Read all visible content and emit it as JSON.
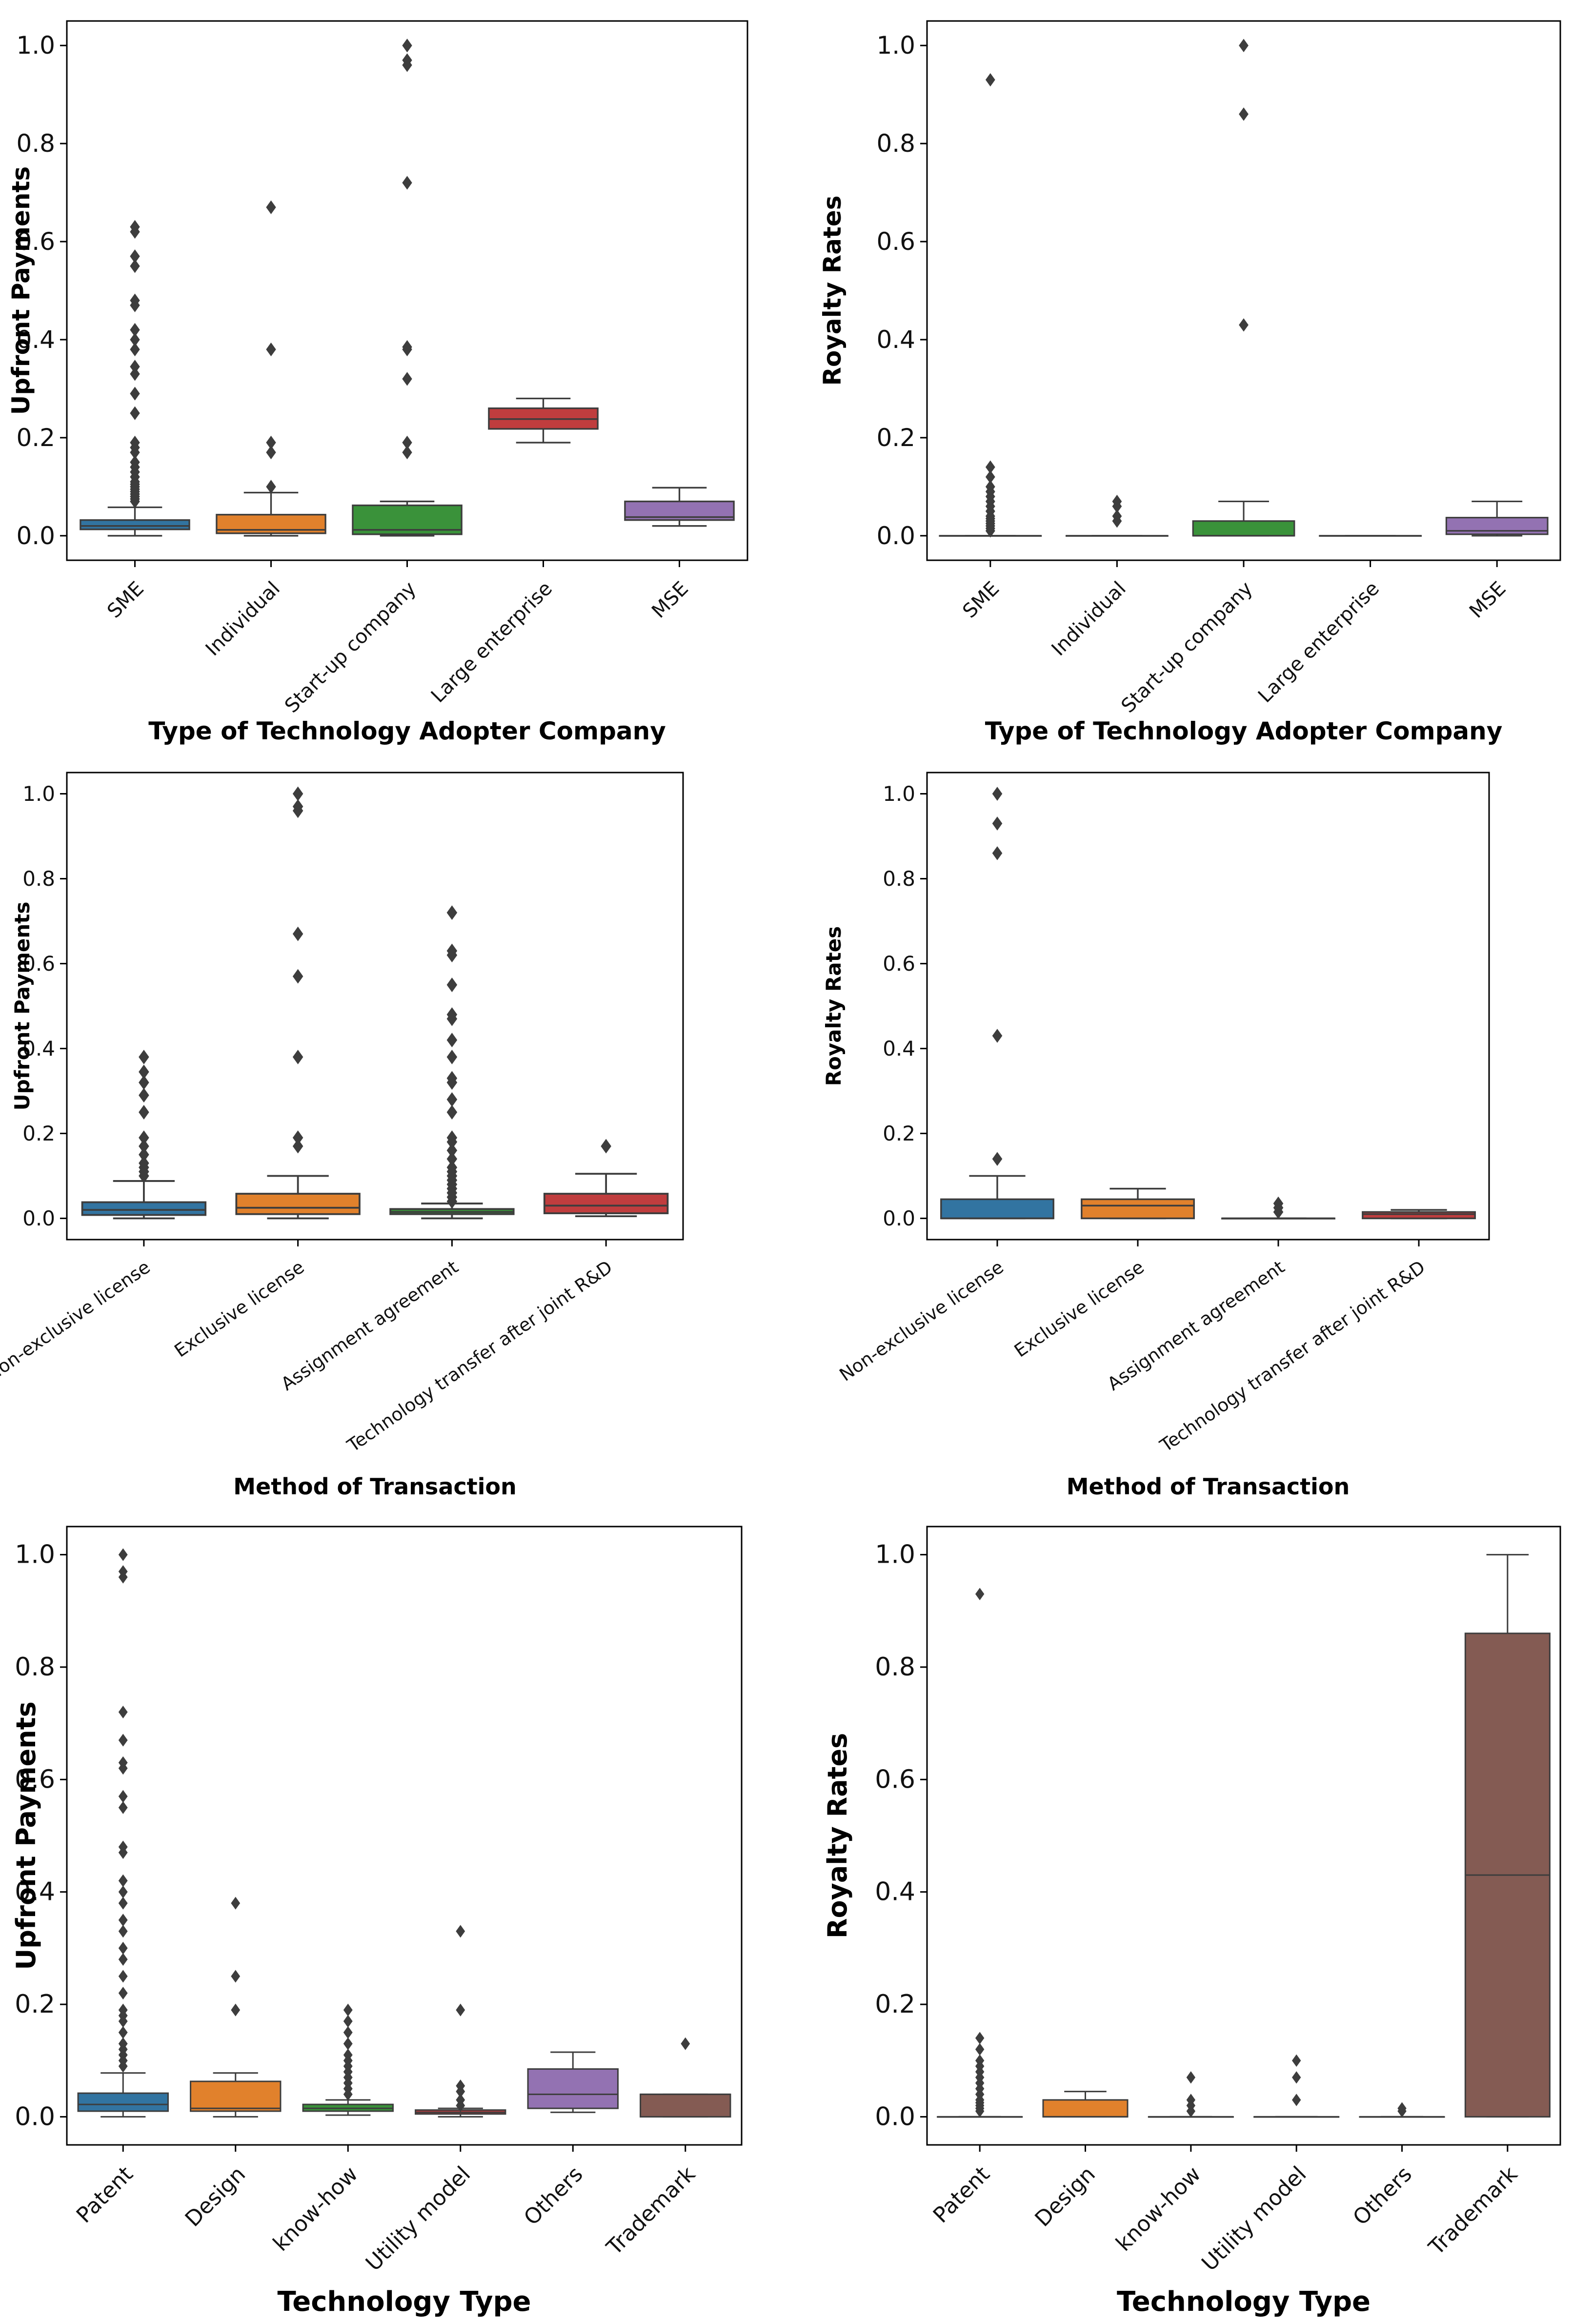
{
  "chart_data": [
    {
      "type": "boxplot",
      "xlabel": "Type of Technology Adopter Company",
      "ylabel": "Upfront Payments",
      "ylim": [
        -0.05,
        1.05
      ],
      "yticks": [
        0.0,
        0.2,
        0.4,
        0.6,
        0.8,
        1.0
      ],
      "ytick_labels": [
        "0.0",
        "0.2",
        "0.4",
        "0.6",
        "0.8",
        "1.0"
      ],
      "grid": false,
      "categories": [
        "SME",
        "Individual",
        "Start-up company",
        "Large enterprise",
        "MSE"
      ],
      "boxes": [
        {
          "whislo": 0.0,
          "q1": 0.013,
          "med": 0.02,
          "q3": 0.032,
          "whishi": 0.058,
          "fliers": [
            0.07,
            0.075,
            0.08,
            0.085,
            0.09,
            0.095,
            0.1,
            0.105,
            0.11,
            0.12,
            0.13,
            0.14,
            0.15,
            0.17,
            0.18,
            0.19,
            0.25,
            0.29,
            0.33,
            0.345,
            0.38,
            0.4,
            0.42,
            0.47,
            0.48,
            0.55,
            0.57,
            0.62,
            0.63
          ]
        },
        {
          "whislo": 0.0,
          "q1": 0.005,
          "med": 0.012,
          "q3": 0.043,
          "whishi": 0.088,
          "fliers": [
            0.1,
            0.17,
            0.19,
            0.38,
            0.67
          ]
        },
        {
          "whislo": 0.0,
          "q1": 0.003,
          "med": 0.012,
          "q3": 0.062,
          "whishi": 0.07,
          "fliers": [
            0.17,
            0.19,
            0.32,
            0.38,
            0.385,
            0.72,
            0.96,
            0.97,
            1.0
          ]
        },
        {
          "whislo": 0.19,
          "q1": 0.218,
          "med": 0.238,
          "q3": 0.26,
          "whishi": 0.28,
          "fliers": []
        },
        {
          "whislo": 0.02,
          "q1": 0.032,
          "med": 0.038,
          "q3": 0.07,
          "whishi": 0.098,
          "fliers": []
        }
      ],
      "colors": [
        "#3274a1",
        "#e1812c",
        "#3a923a",
        "#c03d3e",
        "#9372b2"
      ]
    },
    {
      "type": "boxplot",
      "xlabel": "Type of Technology Adopter Company",
      "ylabel": "Royalty Rates",
      "ylim": [
        -0.05,
        1.05
      ],
      "yticks": [
        0.0,
        0.2,
        0.4,
        0.6,
        0.8,
        1.0
      ],
      "ytick_labels": [
        "0.0",
        "0.2",
        "0.4",
        "0.6",
        "0.8",
        "1.0"
      ],
      "grid": false,
      "categories": [
        "SME",
        "Individual",
        "Start-up company",
        "Large enterprise",
        "MSE"
      ],
      "boxes": [
        {
          "whislo": 0.0,
          "q1": 0.0,
          "med": 0.0,
          "q3": 0.0,
          "whishi": 0.0,
          "fliers": [
            0.01,
            0.015,
            0.02,
            0.025,
            0.03,
            0.035,
            0.04,
            0.05,
            0.06,
            0.07,
            0.08,
            0.09,
            0.1,
            0.12,
            0.14,
            0.93
          ]
        },
        {
          "whislo": 0.0,
          "q1": 0.0,
          "med": 0.0,
          "q3": 0.0,
          "whishi": 0.0,
          "fliers": [
            0.03,
            0.04,
            0.06,
            0.07
          ]
        },
        {
          "whislo": 0.0,
          "q1": 0.0,
          "med": 0.0,
          "q3": 0.03,
          "whishi": 0.07,
          "fliers": [
            0.43,
            0.86,
            1.0
          ]
        },
        {
          "whislo": 0.0,
          "q1": 0.0,
          "med": 0.0,
          "q3": 0.0,
          "whishi": 0.0,
          "fliers": []
        },
        {
          "whislo": 0.0,
          "q1": 0.003,
          "med": 0.01,
          "q3": 0.037,
          "whishi": 0.07,
          "fliers": []
        }
      ],
      "colors": [
        "#3274a1",
        "#e1812c",
        "#3a923a",
        "#c03d3e",
        "#9372b2"
      ]
    },
    {
      "type": "boxplot",
      "xlabel": "Method of Transaction",
      "ylabel": "Upfront Payments",
      "ylim": [
        -0.05,
        1.05
      ],
      "yticks": [
        0.0,
        0.2,
        0.4,
        0.6,
        0.8,
        1.0
      ],
      "ytick_labels": [
        "0.0",
        "0.2",
        "0.4",
        "0.6",
        "0.8",
        "1.0"
      ],
      "grid": false,
      "categories": [
        "Non-exclusive license",
        "Exclusive license",
        "Assignment agreement",
        "Technology transfer after joint R&D"
      ],
      "boxes": [
        {
          "whislo": 0.0,
          "q1": 0.008,
          "med": 0.02,
          "q3": 0.038,
          "whishi": 0.088,
          "fliers": [
            0.1,
            0.11,
            0.12,
            0.13,
            0.15,
            0.17,
            0.19,
            0.25,
            0.29,
            0.32,
            0.345,
            0.38
          ]
        },
        {
          "whislo": 0.0,
          "q1": 0.01,
          "med": 0.025,
          "q3": 0.058,
          "whishi": 0.1,
          "fliers": [
            0.17,
            0.19,
            0.38,
            0.57,
            0.67,
            0.96,
            0.97,
            1.0
          ]
        },
        {
          "whislo": 0.0,
          "q1": 0.01,
          "med": 0.015,
          "q3": 0.022,
          "whishi": 0.035,
          "fliers": [
            0.04,
            0.05,
            0.06,
            0.07,
            0.08,
            0.09,
            0.1,
            0.11,
            0.12,
            0.14,
            0.16,
            0.18,
            0.19,
            0.25,
            0.28,
            0.32,
            0.33,
            0.38,
            0.42,
            0.47,
            0.48,
            0.55,
            0.62,
            0.63,
            0.72
          ]
        },
        {
          "whislo": 0.005,
          "q1": 0.012,
          "med": 0.03,
          "q3": 0.058,
          "whishi": 0.105,
          "fliers": [
            0.17
          ]
        }
      ],
      "colors": [
        "#3274a1",
        "#e1812c",
        "#3a923a",
        "#c03d3e"
      ]
    },
    {
      "type": "boxplot",
      "xlabel": "Method of Transaction",
      "ylabel": "Royalty Rates",
      "ylim": [
        -0.05,
        1.05
      ],
      "yticks": [
        0.0,
        0.2,
        0.4,
        0.6,
        0.8,
        1.0
      ],
      "ytick_labels": [
        "0.0",
        "0.2",
        "0.4",
        "0.6",
        "0.8",
        "1.0"
      ],
      "grid": false,
      "categories": [
        "Non-exclusive license",
        "Exclusive license",
        "Assignment agreement",
        "Technology transfer after joint R&D"
      ],
      "boxes": [
        {
          "whislo": 0.0,
          "q1": 0.0,
          "med": 0.0,
          "q3": 0.045,
          "whishi": 0.1,
          "fliers": [
            0.14,
            0.43,
            0.86,
            0.93,
            1.0
          ]
        },
        {
          "whislo": 0.0,
          "q1": 0.0,
          "med": 0.03,
          "q3": 0.045,
          "whishi": 0.07,
          "fliers": []
        },
        {
          "whislo": 0.0,
          "q1": 0.0,
          "med": 0.0,
          "q3": 0.0,
          "whishi": 0.0,
          "fliers": [
            0.015,
            0.025,
            0.035
          ]
        },
        {
          "whislo": 0.0,
          "q1": 0.0,
          "med": 0.01,
          "q3": 0.015,
          "whishi": 0.02,
          "fliers": []
        }
      ],
      "colors": [
        "#3274a1",
        "#e1812c",
        "#3a923a",
        "#c03d3e"
      ]
    },
    {
      "type": "boxplot",
      "xlabel": "Technology Type",
      "ylabel": "Upfront Payments",
      "ylim": [
        -0.05,
        1.05
      ],
      "yticks": [
        0.0,
        0.2,
        0.4,
        0.6,
        0.8,
        1.0
      ],
      "ytick_labels": [
        "0.0",
        "0.2",
        "0.4",
        "0.6",
        "0.8",
        "1.0"
      ],
      "grid": false,
      "categories": [
        "Patent",
        "Design",
        "know-how",
        "Utility model",
        "Others",
        "Trademark"
      ],
      "boxes": [
        {
          "whislo": 0.0,
          "q1": 0.01,
          "med": 0.022,
          "q3": 0.042,
          "whishi": 0.078,
          "fliers": [
            0.09,
            0.1,
            0.11,
            0.12,
            0.13,
            0.15,
            0.17,
            0.18,
            0.19,
            0.22,
            0.25,
            0.28,
            0.3,
            0.33,
            0.35,
            0.38,
            0.4,
            0.42,
            0.47,
            0.48,
            0.55,
            0.57,
            0.62,
            0.63,
            0.67,
            0.72,
            0.96,
            0.97,
            1.0
          ]
        },
        {
          "whislo": 0.0,
          "q1": 0.01,
          "med": 0.015,
          "q3": 0.063,
          "whishi": 0.078,
          "fliers": [
            0.19,
            0.25,
            0.38
          ]
        },
        {
          "whislo": 0.003,
          "q1": 0.01,
          "med": 0.015,
          "q3": 0.022,
          "whishi": 0.03,
          "fliers": [
            0.04,
            0.05,
            0.06,
            0.07,
            0.08,
            0.09,
            0.1,
            0.11,
            0.13,
            0.15,
            0.17,
            0.19
          ]
        },
        {
          "whislo": 0.0,
          "q1": 0.005,
          "med": 0.008,
          "q3": 0.012,
          "whishi": 0.015,
          "fliers": [
            0.02,
            0.03,
            0.045,
            0.055,
            0.19,
            0.33
          ]
        },
        {
          "whislo": 0.008,
          "q1": 0.015,
          "med": 0.04,
          "q3": 0.085,
          "whishi": 0.115,
          "fliers": []
        },
        {
          "whislo": 0.0,
          "q1": 0.0,
          "med": 0.04,
          "q3": 0.04,
          "whishi": 0.04,
          "fliers": [
            0.13
          ]
        }
      ],
      "colors": [
        "#3274a1",
        "#e1812c",
        "#3a923a",
        "#c03d3e",
        "#9372b2",
        "#845b53"
      ]
    },
    {
      "type": "boxplot",
      "xlabel": "Technology Type",
      "ylabel": "Royalty Rates",
      "ylim": [
        -0.05,
        1.05
      ],
      "yticks": [
        0.0,
        0.2,
        0.4,
        0.6,
        0.8,
        1.0
      ],
      "ytick_labels": [
        "0.0",
        "0.2",
        "0.4",
        "0.6",
        "0.8",
        "1.0"
      ],
      "grid": false,
      "categories": [
        "Patent",
        "Design",
        "know-how",
        "Utility model",
        "Others",
        "Trademark"
      ],
      "boxes": [
        {
          "whislo": 0.0,
          "q1": 0.0,
          "med": 0.0,
          "q3": 0.0,
          "whishi": 0.0,
          "fliers": [
            0.01,
            0.015,
            0.02,
            0.025,
            0.03,
            0.04,
            0.05,
            0.06,
            0.07,
            0.08,
            0.09,
            0.1,
            0.12,
            0.14,
            0.93
          ]
        },
        {
          "whislo": 0.0,
          "q1": 0.0,
          "med": 0.0,
          "q3": 0.03,
          "whishi": 0.045,
          "fliers": []
        },
        {
          "whislo": 0.0,
          "q1": 0.0,
          "med": 0.0,
          "q3": 0.0,
          "whishi": 0.0,
          "fliers": [
            0.01,
            0.02,
            0.03,
            0.07
          ]
        },
        {
          "whislo": 0.0,
          "q1": 0.0,
          "med": 0.0,
          "q3": 0.0,
          "whishi": 0.0,
          "fliers": [
            0.03,
            0.07,
            0.1
          ]
        },
        {
          "whislo": 0.0,
          "q1": 0.0,
          "med": 0.0,
          "q3": 0.0,
          "whishi": 0.0,
          "fliers": [
            0.01,
            0.015
          ]
        },
        {
          "whislo": 0.0,
          "q1": 0.0,
          "med": 0.43,
          "q3": 0.86,
          "whishi": 1.0,
          "fliers": []
        }
      ],
      "colors": [
        "#3274a1",
        "#e1812c",
        "#3a923a",
        "#c03d3e",
        "#9372b2",
        "#845b53"
      ]
    }
  ]
}
